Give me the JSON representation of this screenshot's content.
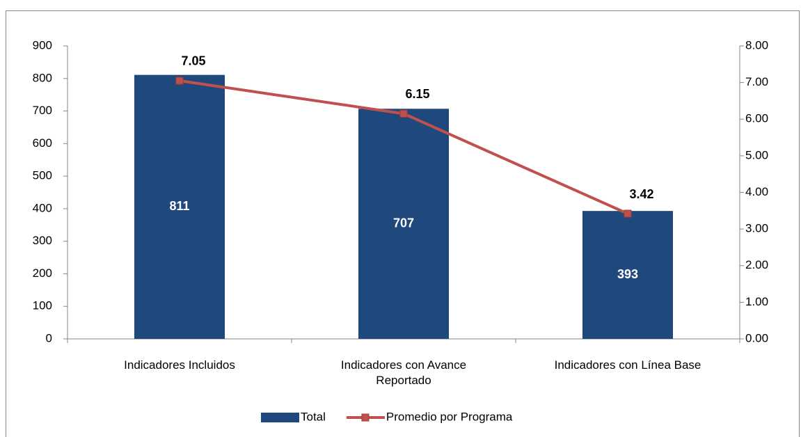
{
  "chart_data": {
    "type": "bar",
    "categories": [
      "Indicadores Incluidos",
      "Indicadores con Avance Reportado",
      "Indicadores con Línea Base"
    ],
    "series": [
      {
        "name": "Total",
        "type": "bar",
        "color": "#1f497d",
        "values": [
          811,
          707,
          393
        ]
      },
      {
        "name": "Promedio por Programa",
        "type": "line",
        "axis": "y2",
        "color": "#c0504d",
        "values": [
          7.05,
          6.15,
          3.42
        ]
      }
    ],
    "ylim": [
      0,
      900
    ],
    "yticks": [
      0,
      100,
      200,
      300,
      400,
      500,
      600,
      700,
      800,
      900
    ],
    "y2lim": [
      0,
      8
    ],
    "y2ticks": [
      {
        "value": 0,
        "label": "0.00"
      },
      {
        "value": 1,
        "label": "1.00"
      },
      {
        "value": 2,
        "label": "2.00"
      },
      {
        "value": 3,
        "label": "3.00"
      },
      {
        "value": 4,
        "label": "4.00"
      },
      {
        "value": 5,
        "label": "5.00"
      },
      {
        "value": 6,
        "label": "6.00"
      },
      {
        "value": 7,
        "label": "7.00"
      },
      {
        "value": 8,
        "label": "8.00"
      }
    ],
    "grid": false,
    "legend": "bottom"
  }
}
